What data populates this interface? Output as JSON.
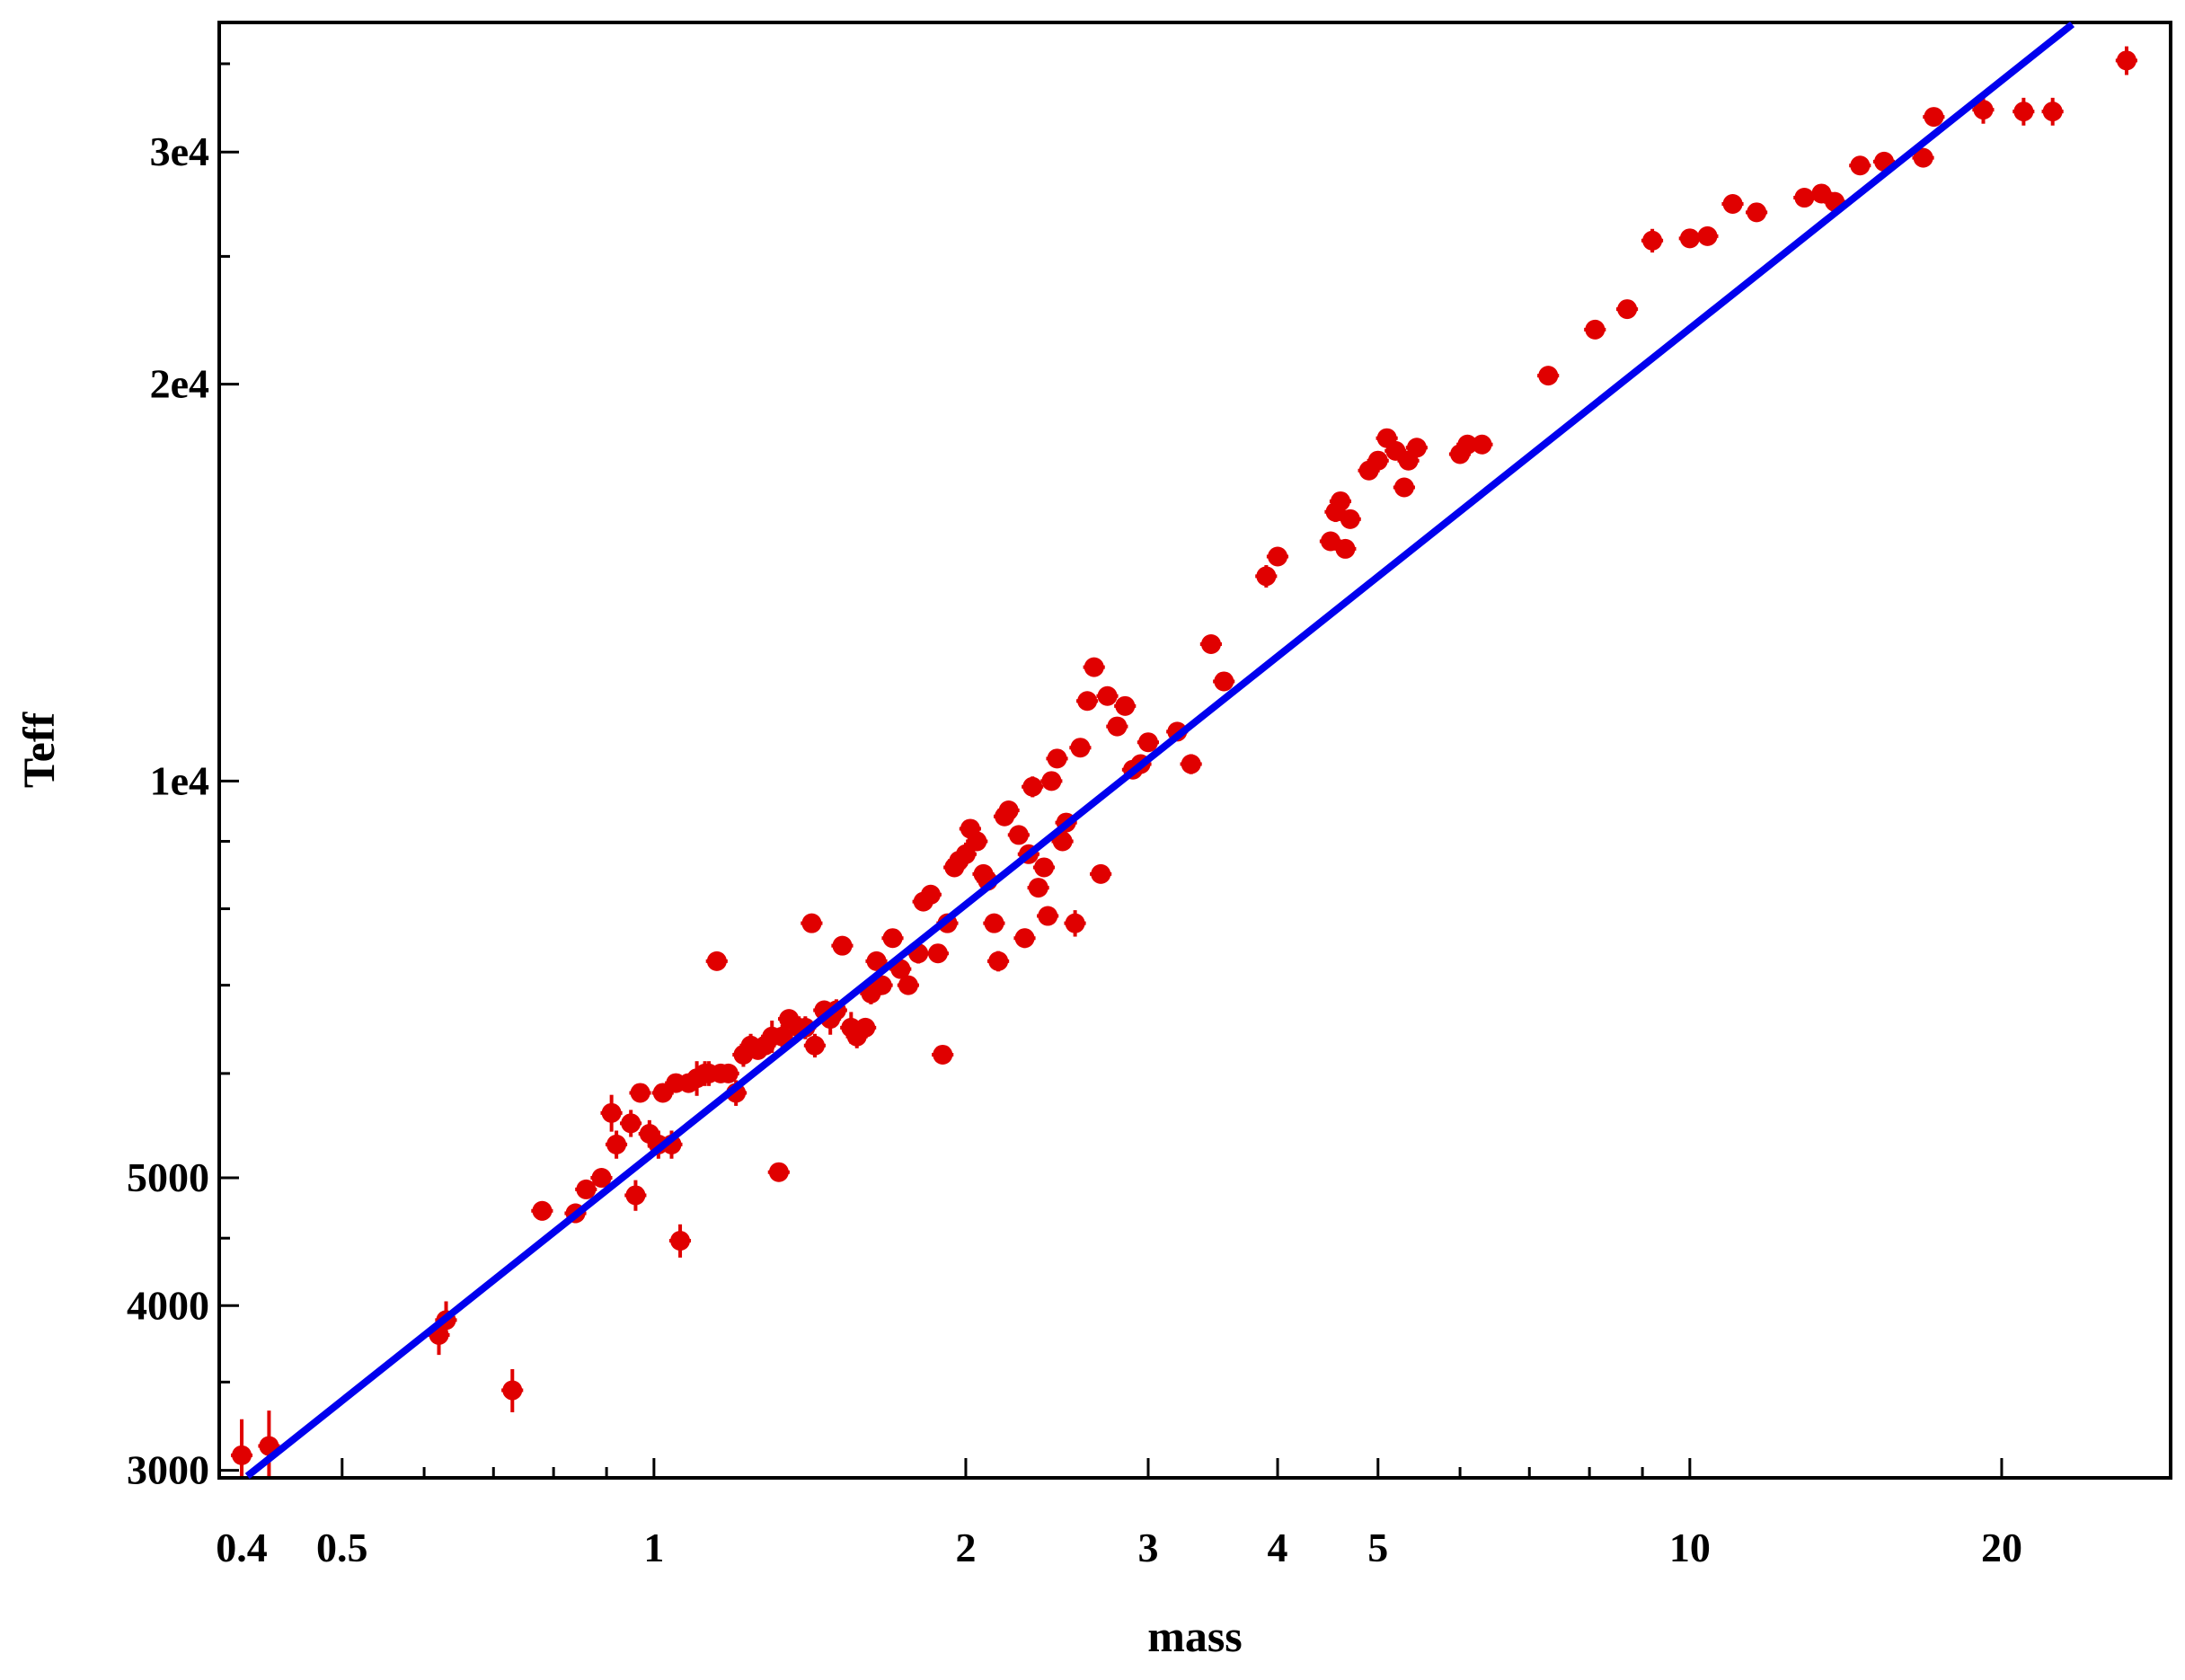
{
  "chart_data": {
    "type": "scatter",
    "title": "",
    "xlabel": "mass",
    "ylabel": "Teff",
    "x_scale": "log",
    "y_scale": "log",
    "xlim": [
      0.382,
      29.0
    ],
    "ylim": [
      2970,
      37500
    ],
    "grid": false,
    "legend": "none",
    "x_ticks": [
      {
        "value": 0.4,
        "label": "0.4"
      },
      {
        "value": 0.5,
        "label": "0.5"
      },
      {
        "value": 1,
        "label": "1"
      },
      {
        "value": 2,
        "label": "2"
      },
      {
        "value": 3,
        "label": "3"
      },
      {
        "value": 4,
        "label": "4"
      },
      {
        "value": 5,
        "label": "5"
      },
      {
        "value": 10,
        "label": "10"
      },
      {
        "value": 20,
        "label": "20"
      }
    ],
    "x_minor_ticks": [
      0.6,
      0.7,
      0.8,
      0.9,
      6,
      7,
      8,
      9
    ],
    "y_ticks": [
      {
        "value": 3000,
        "label": "3000"
      },
      {
        "value": 4000,
        "label": "4000"
      },
      {
        "value": 5000,
        "label": "5000"
      },
      {
        "value": 10000,
        "label": "1e4"
      },
      {
        "value": 20000,
        "label": "2e4"
      },
      {
        "value": 30000,
        "label": "3e4"
      }
    ],
    "y_minor_ticks": [
      3500,
      4500,
      6000,
      7000,
      8000,
      9000,
      25000,
      35000
    ],
    "fit_line": {
      "color": "#0000ee",
      "points": [
        [
          0.405,
          2970
        ],
        [
          23.4,
          37500
        ]
      ]
    },
    "points_color": "#e00000",
    "points": [
      [
        0.4,
        3080,
        0.005,
        200
      ],
      [
        0.425,
        3130,
        0.005,
        200
      ],
      [
        0.62,
        3800,
        0.008,
        130
      ],
      [
        0.63,
        3900,
        0.008,
        130
      ],
      [
        0.73,
        3450,
        0.008,
        130
      ],
      [
        0.78,
        4720,
        0.008,
        80
      ],
      [
        0.84,
        4700,
        0.008,
        80
      ],
      [
        0.86,
        4900,
        0.008,
        80
      ],
      [
        0.89,
        5000,
        0.008,
        80
      ],
      [
        0.91,
        5600,
        0.008,
        180
      ],
      [
        0.92,
        5300,
        0.008,
        130
      ],
      [
        0.95,
        5500,
        0.008,
        130
      ],
      [
        0.96,
        4850,
        0.008,
        130
      ],
      [
        0.97,
        5800,
        0.008,
        80
      ],
      [
        0.99,
        5400,
        0.008,
        130
      ],
      [
        1.01,
        5300,
        0.008,
        130
      ],
      [
        1.02,
        5800,
        0.008,
        80
      ],
      [
        1.04,
        5300,
        0.008,
        130
      ],
      [
        1.05,
        5900,
        0.008,
        80
      ],
      [
        1.06,
        4480,
        0.008,
        130
      ],
      [
        1.08,
        5900,
        0.008,
        80
      ],
      [
        1.1,
        5950,
        0.008,
        180
      ],
      [
        1.12,
        6000,
        0.008,
        130
      ],
      [
        1.13,
        6000,
        0.008,
        130
      ],
      [
        1.15,
        7300,
        0.008,
        80
      ],
      [
        1.16,
        6000,
        0.008,
        80
      ],
      [
        1.18,
        6000,
        0.008,
        80
      ],
      [
        1.2,
        5800,
        0.008,
        130
      ],
      [
        1.22,
        6200,
        0.008,
        130
      ],
      [
        1.24,
        6300,
        0.008,
        130
      ],
      [
        1.26,
        6250,
        0.008,
        80
      ],
      [
        1.28,
        6300,
        0.008,
        80
      ],
      [
        1.3,
        6400,
        0.008,
        180
      ],
      [
        1.32,
        5050,
        0.008,
        80
      ],
      [
        1.33,
        6400,
        0.008,
        130
      ],
      [
        1.35,
        6600,
        0.008,
        80
      ],
      [
        1.38,
        6500,
        0.008,
        130
      ],
      [
        1.4,
        6500,
        0.008,
        130
      ],
      [
        1.42,
        7800,
        0.008,
        80
      ],
      [
        1.43,
        6300,
        0.008,
        130
      ],
      [
        1.46,
        6700,
        0.008,
        80
      ],
      [
        1.48,
        6600,
        0.008,
        180
      ],
      [
        1.5,
        6700,
        0.008,
        130
      ],
      [
        1.52,
        7500,
        0.008,
        80
      ],
      [
        1.55,
        6500,
        0.008,
        180
      ],
      [
        1.57,
        6400,
        0.008,
        130
      ],
      [
        1.6,
        6500,
        0.008,
        80
      ],
      [
        1.62,
        6900,
        0.008,
        130
      ],
      [
        1.64,
        7300,
        0.008,
        80
      ],
      [
        1.66,
        7000,
        0.008,
        80
      ],
      [
        1.7,
        7600,
        0.008,
        80
      ],
      [
        1.73,
        7200,
        0.008,
        80
      ],
      [
        1.76,
        7000,
        0.008,
        80
      ],
      [
        1.8,
        7400,
        0.008,
        130
      ],
      [
        1.82,
        8100,
        0.008,
        80
      ],
      [
        1.85,
        8200,
        0.008,
        130
      ],
      [
        1.88,
        7400,
        0.008,
        80
      ],
      [
        1.9,
        6200,
        0.008,
        80
      ],
      [
        1.92,
        7800,
        0.008,
        130
      ],
      [
        1.95,
        8600,
        0.008,
        130
      ],
      [
        1.97,
        8700,
        0.008,
        80
      ],
      [
        2.0,
        8800,
        0.008,
        180
      ],
      [
        2.02,
        9200,
        0.008,
        130
      ],
      [
        2.05,
        9000,
        0.008,
        130
      ],
      [
        2.08,
        8500,
        0.008,
        130
      ],
      [
        2.1,
        8400,
        0.008,
        80
      ],
      [
        2.13,
        7800,
        0.008,
        80
      ],
      [
        2.15,
        7300,
        0.008,
        130
      ],
      [
        2.18,
        9400,
        0.008,
        130
      ],
      [
        2.2,
        9500,
        0.008,
        80
      ],
      [
        2.25,
        9100,
        0.008,
        130
      ],
      [
        2.28,
        7600,
        0.008,
        130
      ],
      [
        2.3,
        8800,
        0.008,
        80
      ],
      [
        2.32,
        9900,
        0.008,
        180
      ],
      [
        2.35,
        8300,
        0.008,
        80
      ],
      [
        2.38,
        8600,
        0.008,
        130
      ],
      [
        2.4,
        7900,
        0.008,
        80
      ],
      [
        2.42,
        10000,
        0.008,
        80
      ],
      [
        2.45,
        10400,
        0.008,
        130
      ],
      [
        2.48,
        9000,
        0.008,
        80
      ],
      [
        2.5,
        9300,
        0.008,
        80
      ],
      [
        2.55,
        7800,
        0.008,
        180
      ],
      [
        2.58,
        10600,
        0.008,
        130
      ],
      [
        2.62,
        11500,
        0.008,
        130
      ],
      [
        2.66,
        12200,
        0.008,
        80
      ],
      [
        2.7,
        8500,
        0.008,
        80
      ],
      [
        2.74,
        11600,
        0.008,
        80
      ],
      [
        2.8,
        11000,
        0.008,
        80
      ],
      [
        2.85,
        11400,
        0.008,
        80
      ],
      [
        2.9,
        10200,
        0.008,
        80
      ],
      [
        2.95,
        10300,
        0.008,
        130
      ],
      [
        3.0,
        10700,
        0.008,
        80
      ],
      [
        3.2,
        10900,
        0.008,
        130
      ],
      [
        3.3,
        10300,
        0.008,
        180
      ],
      [
        3.45,
        12700,
        0.008,
        80
      ],
      [
        3.55,
        11900,
        0.008,
        80
      ],
      [
        3.9,
        14300,
        0.008,
        280
      ],
      [
        4.0,
        14800,
        0.008,
        180
      ],
      [
        4.5,
        15200,
        0.008,
        180
      ],
      [
        4.55,
        16000,
        0.008,
        280
      ],
      [
        4.6,
        16300,
        0.008,
        180
      ],
      [
        4.65,
        15000,
        0.008,
        180
      ],
      [
        4.7,
        15800,
        0.008,
        80
      ],
      [
        4.9,
        17200,
        0.008,
        130
      ],
      [
        5.0,
        17500,
        0.008,
        280
      ],
      [
        5.1,
        18200,
        0.008,
        180
      ],
      [
        5.2,
        17800,
        0.008,
        80
      ],
      [
        5.3,
        16700,
        0.008,
        180
      ],
      [
        5.35,
        17500,
        0.008,
        130
      ],
      [
        5.45,
        17900,
        0.008,
        180
      ],
      [
        6.0,
        17700,
        0.008,
        280
      ],
      [
        6.1,
        18000,
        0.008,
        180
      ],
      [
        6.3,
        18000,
        0.008,
        130
      ],
      [
        7.3,
        20300,
        0.008,
        180
      ],
      [
        8.1,
        22000,
        0.008,
        180
      ],
      [
        8.7,
        22800,
        0.008,
        180
      ],
      [
        9.2,
        25700,
        0.008,
        530
      ],
      [
        10.0,
        25800,
        0.008,
        180
      ],
      [
        10.4,
        25900,
        0.008,
        280
      ],
      [
        11.0,
        27400,
        0.008,
        280
      ],
      [
        11.6,
        27000,
        0.008,
        280
      ],
      [
        12.9,
        27700,
        0.008,
        380
      ],
      [
        13.4,
        27900,
        0.008,
        180
      ],
      [
        13.8,
        27500,
        0.008,
        180
      ],
      [
        14.6,
        29300,
        0.008,
        180
      ],
      [
        15.4,
        29500,
        0.008,
        380
      ],
      [
        16.8,
        29700,
        0.008,
        380
      ],
      [
        17.2,
        31900,
        0.008,
        380
      ],
      [
        19.2,
        32300,
        0.008,
        780
      ],
      [
        21.0,
        32200,
        0.008,
        780
      ],
      [
        22.4,
        32200,
        0.008,
        780
      ],
      [
        26.4,
        35200,
        0.008,
        880
      ]
    ]
  }
}
